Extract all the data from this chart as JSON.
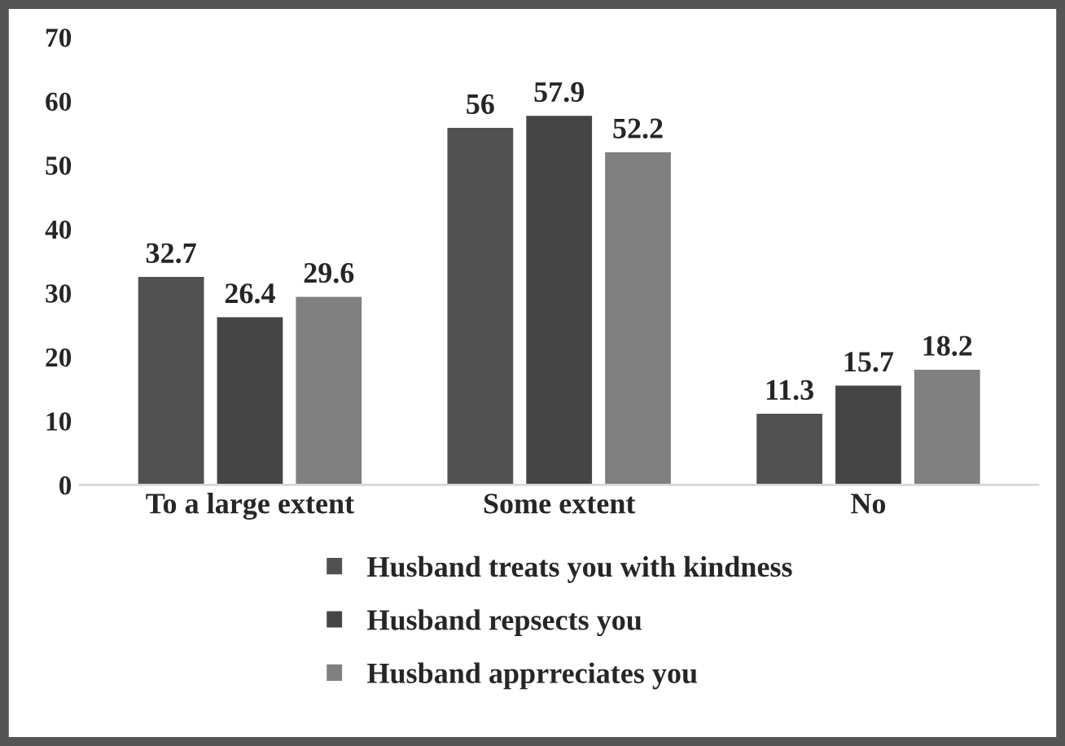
{
  "chart_data": {
    "type": "bar",
    "categories": [
      "To a large extent",
      "Some extent",
      "No"
    ],
    "series": [
      {
        "name": "Husband treats you with kindness",
        "color": "#515151",
        "values": [
          32.7,
          56,
          11.3
        ]
      },
      {
        "name": "Husband repsects you",
        "color": "#454545",
        "values": [
          26.4,
          57.9,
          15.7
        ]
      },
      {
        "name": "Husband apprreciates you",
        "color": "#808080",
        "values": [
          29.6,
          52.2,
          18.2
        ]
      }
    ],
    "ylim": [
      0,
      70
    ],
    "yticks": [
      0,
      10,
      20,
      30,
      40,
      50,
      60,
      70
    ],
    "data_labels": true,
    "grid": false,
    "legend": "bottom"
  }
}
